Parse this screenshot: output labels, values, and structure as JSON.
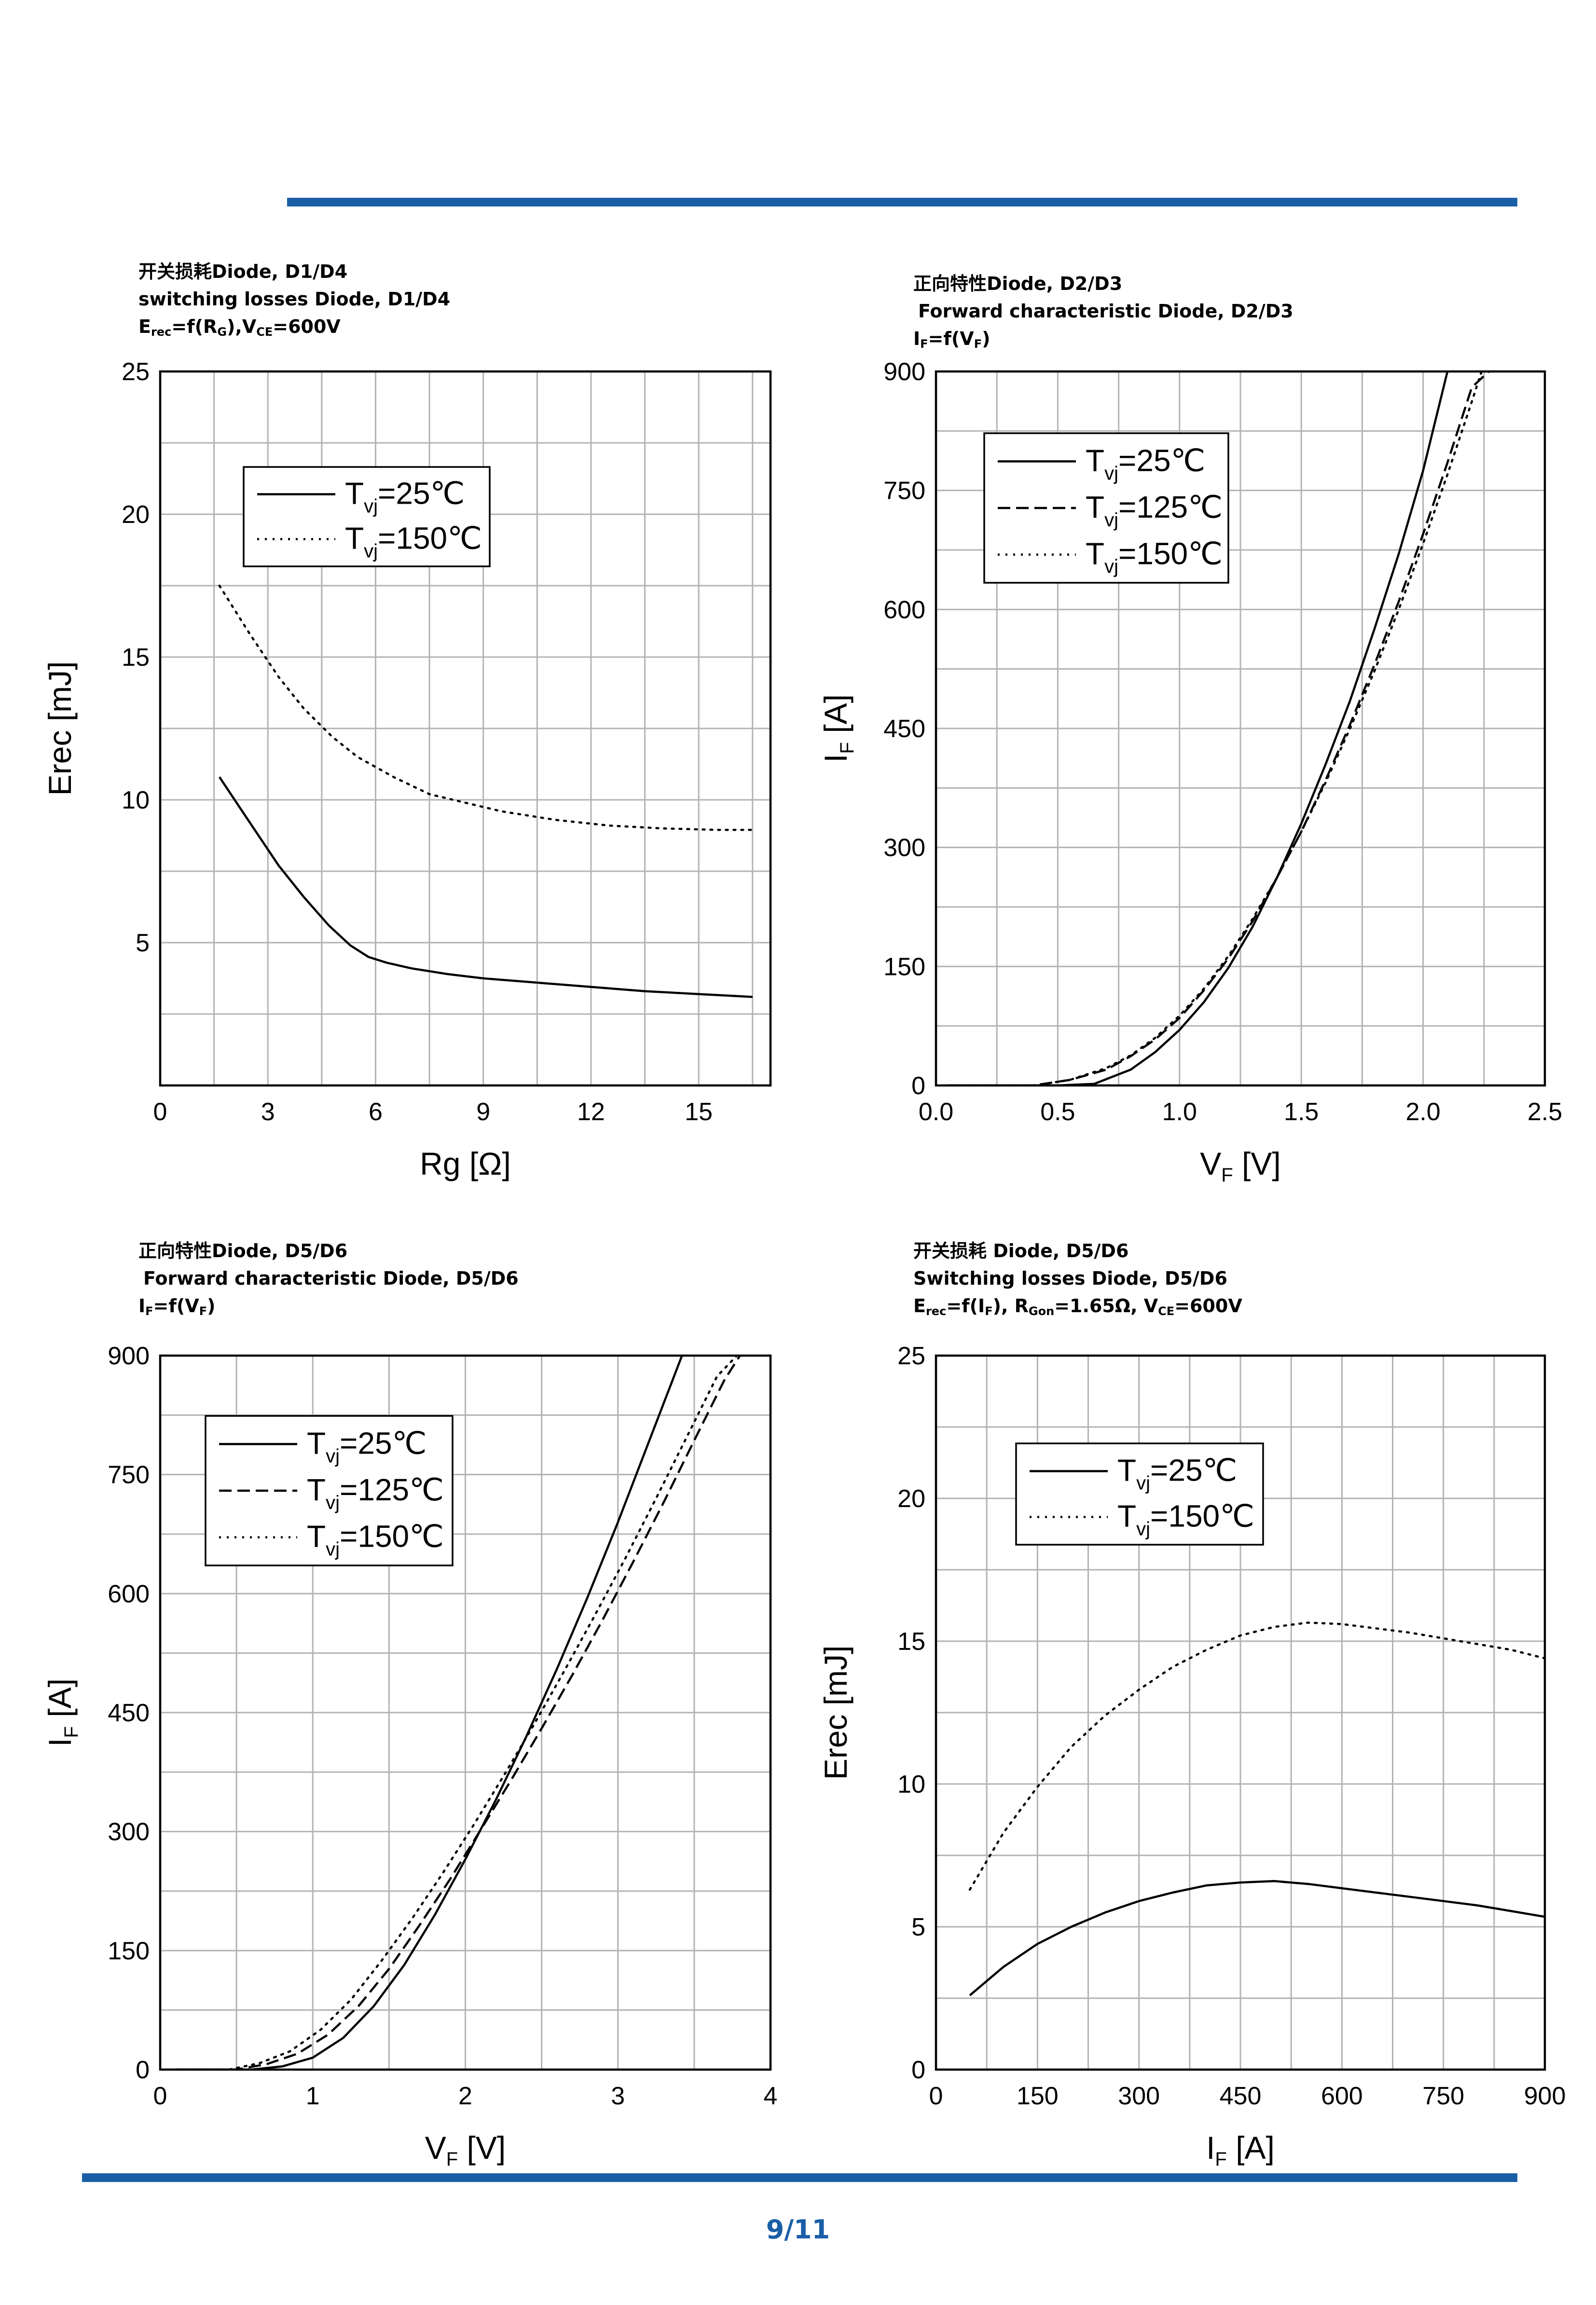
{
  "page": {
    "number": "9/11",
    "accent_color": "#1a5fa6"
  },
  "chart_data": [
    {
      "type": "line",
      "title": [
        "开关损耗Diode, D1/D4",
        "switching losses Diode, D1/D4",
        "Erec=f(RG),VCE=600V"
      ],
      "xlabel": "Rg [Ω]",
      "ylabel": "Erec [mJ]",
      "xlim": [
        0,
        17
      ],
      "ylim": [
        0,
        25
      ],
      "xticks": [
        0,
        3,
        6,
        9,
        12,
        15
      ],
      "yticks": [
        5,
        10,
        15,
        20,
        25
      ],
      "xgrid_step": 1.5,
      "ygrid_step": 2.5,
      "legend_position": "top-left",
      "series": [
        {
          "name": "Tvj=25℃",
          "label_main": "T",
          "label_sub": "vj",
          "label_rest": "=25℃",
          "style": "solid",
          "x": [
            1.65,
            2.5,
            3.3,
            4.0,
            4.7,
            5.3,
            5.8,
            6.3,
            7.0,
            8.0,
            9.0,
            10.5,
            12.0,
            13.5,
            15.0,
            16.5
          ],
          "y": [
            10.8,
            9.2,
            7.7,
            6.6,
            5.6,
            4.9,
            4.5,
            4.3,
            4.1,
            3.9,
            3.75,
            3.6,
            3.45,
            3.3,
            3.2,
            3.1
          ]
        },
        {
          "name": "Tvj=150℃",
          "label_main": "T",
          "label_sub": "vj",
          "label_rest": "=150℃",
          "style": "dotted",
          "x": [
            1.65,
            2.5,
            3.3,
            4.0,
            4.8,
            5.5,
            6.5,
            7.5,
            8.5,
            9.5,
            11.0,
            12.5,
            14.0,
            15.5,
            16.5
          ],
          "y": [
            17.5,
            15.8,
            14.3,
            13.2,
            12.2,
            11.5,
            10.8,
            10.2,
            9.9,
            9.6,
            9.3,
            9.1,
            9.0,
            8.95,
            8.95
          ]
        }
      ]
    },
    {
      "type": "line",
      "title": [
        "正向特性Diode, D2/D3",
        "Forward characteristic Diode, D2/D3",
        "IF=f(VF)"
      ],
      "xlabel": "VF [V]",
      "ylabel": "IF [A]",
      "xlim": [
        0,
        2.5
      ],
      "ylim": [
        0,
        900
      ],
      "xticks": [
        0.0,
        0.5,
        1.0,
        1.5,
        2.0,
        2.5
      ],
      "xtick_labels": [
        "0.0",
        "0.5",
        "1.0",
        "1.5",
        "2.0",
        "2.5"
      ],
      "yticks": [
        0,
        150,
        300,
        450,
        600,
        750,
        900
      ],
      "xgrid_step": 0.25,
      "ygrid_step": 75,
      "legend_position": "top-left",
      "series": [
        {
          "name": "Tvj=25℃",
          "label_main": "T",
          "label_sub": "vj",
          "label_rest": "=25℃",
          "style": "solid",
          "x": [
            0.05,
            0.5,
            0.65,
            0.8,
            0.9,
            1.0,
            1.1,
            1.2,
            1.3,
            1.4,
            1.5,
            1.6,
            1.7,
            1.8,
            1.9,
            2.0,
            2.1
          ],
          "y": [
            0,
            0,
            2,
            20,
            42,
            70,
            105,
            148,
            200,
            262,
            330,
            405,
            485,
            575,
            670,
            775,
            900
          ]
        },
        {
          "name": "Tvj=125℃",
          "label_main": "T",
          "label_sub": "vj",
          "label_rest": "=125℃",
          "style": "dashed",
          "x": [
            0.05,
            0.4,
            0.55,
            0.7,
            0.8,
            0.9,
            1.0,
            1.1,
            1.2,
            1.3,
            1.4,
            1.5,
            1.6,
            1.7,
            1.8,
            1.9,
            2.0,
            2.1,
            2.2,
            2.27
          ],
          "y": [
            0,
            0,
            7,
            20,
            37,
            58,
            85,
            120,
            160,
            207,
            262,
            320,
            385,
            455,
            530,
            610,
            695,
            785,
            880,
            900
          ]
        },
        {
          "name": "Tvj=150℃",
          "label_main": "T",
          "label_sub": "vj",
          "label_rest": "=150℃",
          "style": "dotted",
          "x": [
            0.05,
            0.4,
            0.55,
            0.7,
            0.8,
            0.9,
            1.0,
            1.1,
            1.2,
            1.3,
            1.4,
            1.5,
            1.6,
            1.7,
            1.8,
            1.9,
            2.0,
            2.1,
            2.2,
            2.24
          ],
          "y": [
            0,
            0,
            7,
            22,
            38,
            60,
            88,
            122,
            163,
            210,
            262,
            320,
            382,
            450,
            522,
            600,
            683,
            770,
            862,
            900
          ]
        }
      ]
    },
    {
      "type": "line",
      "title": [
        "正向特性Diode, D5/D6",
        "Forward characteristic Diode, D5/D6",
        "IF=f(VF)"
      ],
      "xlabel": "VF [V]",
      "ylabel": "IF [A]",
      "xlim": [
        0,
        4
      ],
      "ylim": [
        0,
        900
      ],
      "xticks": [
        0,
        1,
        2,
        3,
        4
      ],
      "yticks": [
        0,
        150,
        300,
        450,
        600,
        750,
        900
      ],
      "xgrid_step": 0.5,
      "ygrid_step": 75,
      "legend_position": "top-left",
      "series": [
        {
          "name": "Tvj=25℃",
          "label_main": "T",
          "label_sub": "vj",
          "label_rest": "=25℃",
          "style": "solid",
          "x": [
            0.1,
            0.6,
            0.8,
            1.0,
            1.2,
            1.4,
            1.6,
            1.8,
            2.0,
            2.2,
            2.4,
            2.6,
            2.8,
            3.0,
            3.2,
            3.42
          ],
          "y": [
            0,
            0,
            4,
            15,
            40,
            80,
            132,
            195,
            265,
            340,
            420,
            505,
            595,
            690,
            790,
            900
          ]
        },
        {
          "name": "Tvj=125℃",
          "label_main": "T",
          "label_sub": "vj",
          "label_rest": "=125℃",
          "style": "dashed",
          "x": [
            0.1,
            0.5,
            0.7,
            0.9,
            1.1,
            1.3,
            1.5,
            1.7,
            1.9,
            2.1,
            2.3,
            2.5,
            2.7,
            2.9,
            3.1,
            3.3,
            3.5,
            3.7,
            3.8
          ],
          "y": [
            0,
            0,
            7,
            20,
            44,
            80,
            127,
            182,
            240,
            302,
            365,
            430,
            497,
            567,
            640,
            715,
            793,
            870,
            900
          ]
        },
        {
          "name": "Tvj=150℃",
          "label_main": "T",
          "label_sub": "vj",
          "label_rest": "=150℃",
          "style": "dotted",
          "x": [
            0.1,
            0.45,
            0.65,
            0.85,
            1.05,
            1.25,
            1.45,
            1.65,
            1.85,
            2.05,
            2.25,
            2.45,
            2.65,
            2.85,
            3.05,
            3.25,
            3.45,
            3.65,
            3.78
          ],
          "y": [
            0,
            0,
            8,
            23,
            50,
            88,
            137,
            190,
            247,
            307,
            370,
            435,
            503,
            573,
            645,
            720,
            797,
            874,
            900
          ]
        }
      ]
    },
    {
      "type": "line",
      "title": [
        "开关损耗 Diode, D5/D6",
        "Switching losses Diode, D5/D6",
        "Erec=f(IF), RGon=1.65Ω, VCE=600V"
      ],
      "xlabel": "IF [A]",
      "ylabel": "Erec [mJ]",
      "xlim": [
        0,
        900
      ],
      "ylim": [
        0,
        25
      ],
      "xticks": [
        0,
        150,
        300,
        450,
        600,
        750,
        900
      ],
      "yticks": [
        0,
        5,
        10,
        15,
        20,
        25
      ],
      "xgrid_step": 75,
      "ygrid_step": 2.5,
      "legend_position": "top-left",
      "series": [
        {
          "name": "Tvj=25℃",
          "label_main": "T",
          "label_sub": "vj",
          "label_rest": "=25℃",
          "style": "solid",
          "x": [
            50,
            100,
            150,
            200,
            250,
            300,
            350,
            400,
            450,
            500,
            550,
            600,
            650,
            700,
            750,
            800,
            850,
            900
          ],
          "y": [
            2.6,
            3.6,
            4.4,
            5.0,
            5.5,
            5.9,
            6.2,
            6.45,
            6.55,
            6.6,
            6.5,
            6.35,
            6.2,
            6.05,
            5.9,
            5.75,
            5.55,
            5.35
          ]
        },
        {
          "name": "Tvj=150℃",
          "label_main": "T",
          "label_sub": "vj",
          "label_rest": "=150℃",
          "style": "dotted",
          "x": [
            50,
            100,
            150,
            200,
            250,
            300,
            350,
            400,
            450,
            500,
            550,
            600,
            650,
            700,
            750,
            800,
            850,
            900
          ],
          "y": [
            6.3,
            8.3,
            9.9,
            11.3,
            12.4,
            13.3,
            14.1,
            14.7,
            15.2,
            15.5,
            15.65,
            15.6,
            15.45,
            15.3,
            15.1,
            14.9,
            14.7,
            14.4
          ]
        }
      ]
    }
  ]
}
